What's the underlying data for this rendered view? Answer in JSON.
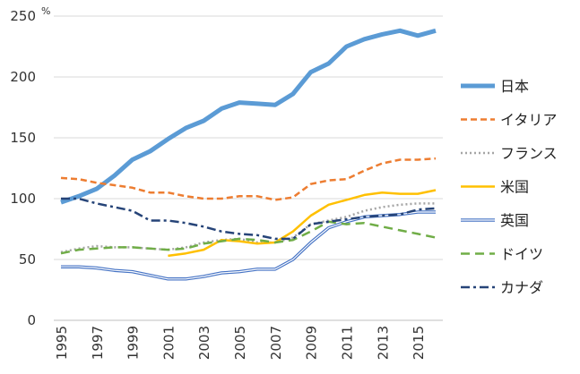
{
  "chart_data": {
    "type": "line",
    "title": "",
    "xlabel": "",
    "ylabel": "",
    "y_unit": "%",
    "xlim": [
      1995,
      2016
    ],
    "ylim": [
      0,
      250
    ],
    "y_ticks": [
      0,
      50,
      100,
      150,
      200,
      250
    ],
    "x_ticks": [
      "1995",
      "1997",
      "1999",
      "2001",
      "2003",
      "2005",
      "2007",
      "2009",
      "2011",
      "2013",
      "2015"
    ],
    "grid": "horizontal",
    "legend_position": "right",
    "x": [
      1995,
      1996,
      1997,
      1998,
      1999,
      2000,
      2001,
      2002,
      2003,
      2004,
      2005,
      2006,
      2007,
      2008,
      2009,
      2010,
      2011,
      2012,
      2013,
      2014,
      2015,
      2016
    ],
    "series": [
      {
        "name": "日本",
        "color": "#5b9bd5",
        "style": "thick-solid",
        "values": [
          97,
          102,
          108,
          119,
          132,
          139,
          149,
          158,
          164,
          174,
          179,
          178,
          177,
          186,
          204,
          211,
          225,
          231,
          235,
          238,
          234,
          238
        ]
      },
      {
        "name": "イタリア",
        "color": "#ed7d31",
        "style": "dashed",
        "values": [
          117,
          116,
          113,
          111,
          109,
          105,
          105,
          102,
          100,
          100,
          102,
          102,
          99,
          101,
          112,
          115,
          116,
          123,
          129,
          132,
          132,
          133
        ]
      },
      {
        "name": "フランス",
        "color": "#a5a5a5",
        "style": "dotted",
        "values": [
          56,
          59,
          61,
          60,
          60,
          59,
          58,
          60,
          64,
          66,
          67,
          64,
          64,
          68,
          79,
          82,
          85,
          90,
          93,
          95,
          96,
          96
        ]
      },
      {
        "name": "米国",
        "color": "#ffc000",
        "style": "solid",
        "values": [
          null,
          null,
          null,
          null,
          null,
          null,
          53,
          55,
          58,
          66,
          65,
          63,
          64,
          73,
          86,
          95,
          99,
          103,
          105,
          104,
          104,
          107
        ]
      },
      {
        "name": "英国",
        "color": "#4472c4",
        "style": "double",
        "values": [
          44,
          44,
          43,
          41,
          40,
          37,
          34,
          34,
          36,
          39,
          40,
          42,
          42,
          50,
          64,
          76,
          81,
          85,
          86,
          87,
          89,
          89
        ]
      },
      {
        "name": "ドイツ",
        "color": "#70ad47",
        "style": "long-dash",
        "values": [
          55,
          58,
          59,
          60,
          60,
          59,
          58,
          59,
          63,
          65,
          67,
          66,
          64,
          66,
          73,
          81,
          79,
          80,
          77,
          74,
          71,
          68
        ]
      },
      {
        "name": "カナダ",
        "color": "#264478",
        "style": "dash-dot",
        "values": [
          100,
          100,
          96,
          93,
          90,
          82,
          82,
          80,
          77,
          73,
          71,
          70,
          67,
          67,
          79,
          81,
          83,
          85,
          86,
          87,
          91,
          92
        ]
      }
    ]
  }
}
